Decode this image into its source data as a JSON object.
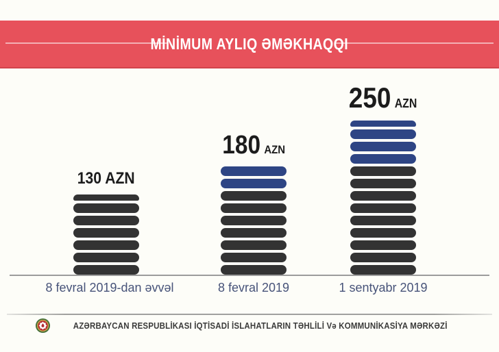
{
  "title": {
    "text": "MİNİMUM AYLIQ ƏMƏKHAQQI"
  },
  "chart_data": {
    "type": "bar",
    "title": "MİNİMUM AYLIQ ƏMƏKHAQQI",
    "categories": [
      "8 fevral 2019-dan əvvəl",
      "8 fevral 2019",
      "1 sentyabr 2019"
    ],
    "values": [
      130,
      180,
      250
    ],
    "unit": "AZN",
    "value_labels": [
      "130 AZN",
      "180 AZN",
      "250 AZN"
    ],
    "encoding": {
      "style": "coin-stack-pictogram",
      "azn_per_pill": 20,
      "pill_counts": [
        6.5,
        9,
        12.5
      ],
      "blue_pill_counts": [
        0,
        2,
        3.5
      ],
      "base_color": "#333333",
      "highlight_color": "#2e4584"
    },
    "xlabel": "",
    "ylabel": "",
    "legend": "none",
    "grid": false
  },
  "bars": [
    {
      "value": "130",
      "unit": "AZN",
      "category": "8 fevral 2019-dan əvvəl",
      "pills": [
        "dark-half",
        "dark",
        "dark",
        "dark",
        "dark",
        "dark",
        "dark"
      ]
    },
    {
      "value": "180",
      "unit": "AZN",
      "category": "8 fevral 2019",
      "pills": [
        "blue",
        "blue",
        "dark",
        "dark",
        "dark",
        "dark",
        "dark",
        "dark",
        "dark"
      ]
    },
    {
      "value": "250",
      "unit": "AZN",
      "category": "1 sentyabr 2019",
      "pills": [
        "blue-half",
        "blue",
        "blue",
        "blue",
        "dark",
        "dark",
        "dark",
        "dark",
        "dark",
        "dark",
        "dark",
        "dark",
        "dark"
      ]
    }
  ],
  "footer": {
    "organization": "AZƏRBAYCAN RESPUBLİKASI İQTİSADİ İSLAHATLARIN TƏHLİLİ Və KOMMUNİKASİYA MƏRKƏZİ",
    "emblem": "azerbaijan-state-emblem"
  },
  "colors": {
    "background": "#fdfdf8",
    "banner": "#e7515b",
    "banner_edge": "#d2434d",
    "banner_line": "#f29aa0",
    "pill_dark": "#333333",
    "pill_blue": "#2e4584",
    "value_text": "#1c1c1c",
    "axis_text": "#475379",
    "baseline": "#9c9c9c",
    "footer_text": "#3b3b3b"
  }
}
